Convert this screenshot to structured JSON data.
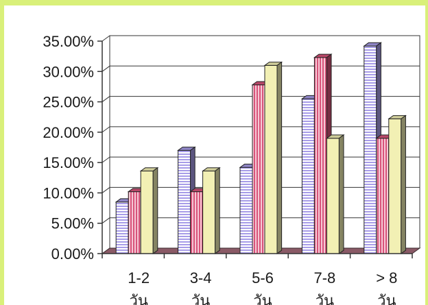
{
  "colors": {
    "page_background": "#d9f07a",
    "plot_background": "#ffffff",
    "floor": "#8a5a66",
    "series": [
      "#a79ce8",
      "#d8537a",
      "#f2f0b4"
    ]
  },
  "chart_data": {
    "type": "bar",
    "variant": "3d-clustered-column",
    "title": "",
    "xlabel": "",
    "ylabel": "",
    "categories": [
      {
        "line1": "1-2",
        "line2": "วัน"
      },
      {
        "line1": "3-4",
        "line2": "วัน"
      },
      {
        "line1": "5-6",
        "line2": "วัน"
      },
      {
        "line1": "7-8",
        "line2": "วัน"
      },
      {
        "line1": "> 8",
        "line2": "วัน"
      }
    ],
    "series": [
      {
        "values": [
          8.5,
          17.0,
          14.2,
          25.5,
          34.2
        ],
        "pattern": "horizontal-stripes",
        "color": "#a79ce8"
      },
      {
        "values": [
          10.2,
          10.2,
          27.8,
          32.3,
          19.0
        ],
        "pattern": "vertical-stripes",
        "color": "#d8537a"
      },
      {
        "values": [
          13.6,
          13.6,
          31.0,
          19.0,
          22.2
        ],
        "pattern": "solid",
        "color": "#f2f0b4"
      }
    ],
    "ylim": [
      0,
      35
    ],
    "y_ticks": [
      0,
      5,
      10,
      15,
      20,
      25,
      30,
      35
    ],
    "y_tick_labels": [
      "0.00%",
      "5.00%",
      "10.00%",
      "15.00%",
      "20.00%",
      "25.00%",
      "30.00%",
      "35.00%"
    ],
    "grid": true,
    "legend": "none"
  }
}
